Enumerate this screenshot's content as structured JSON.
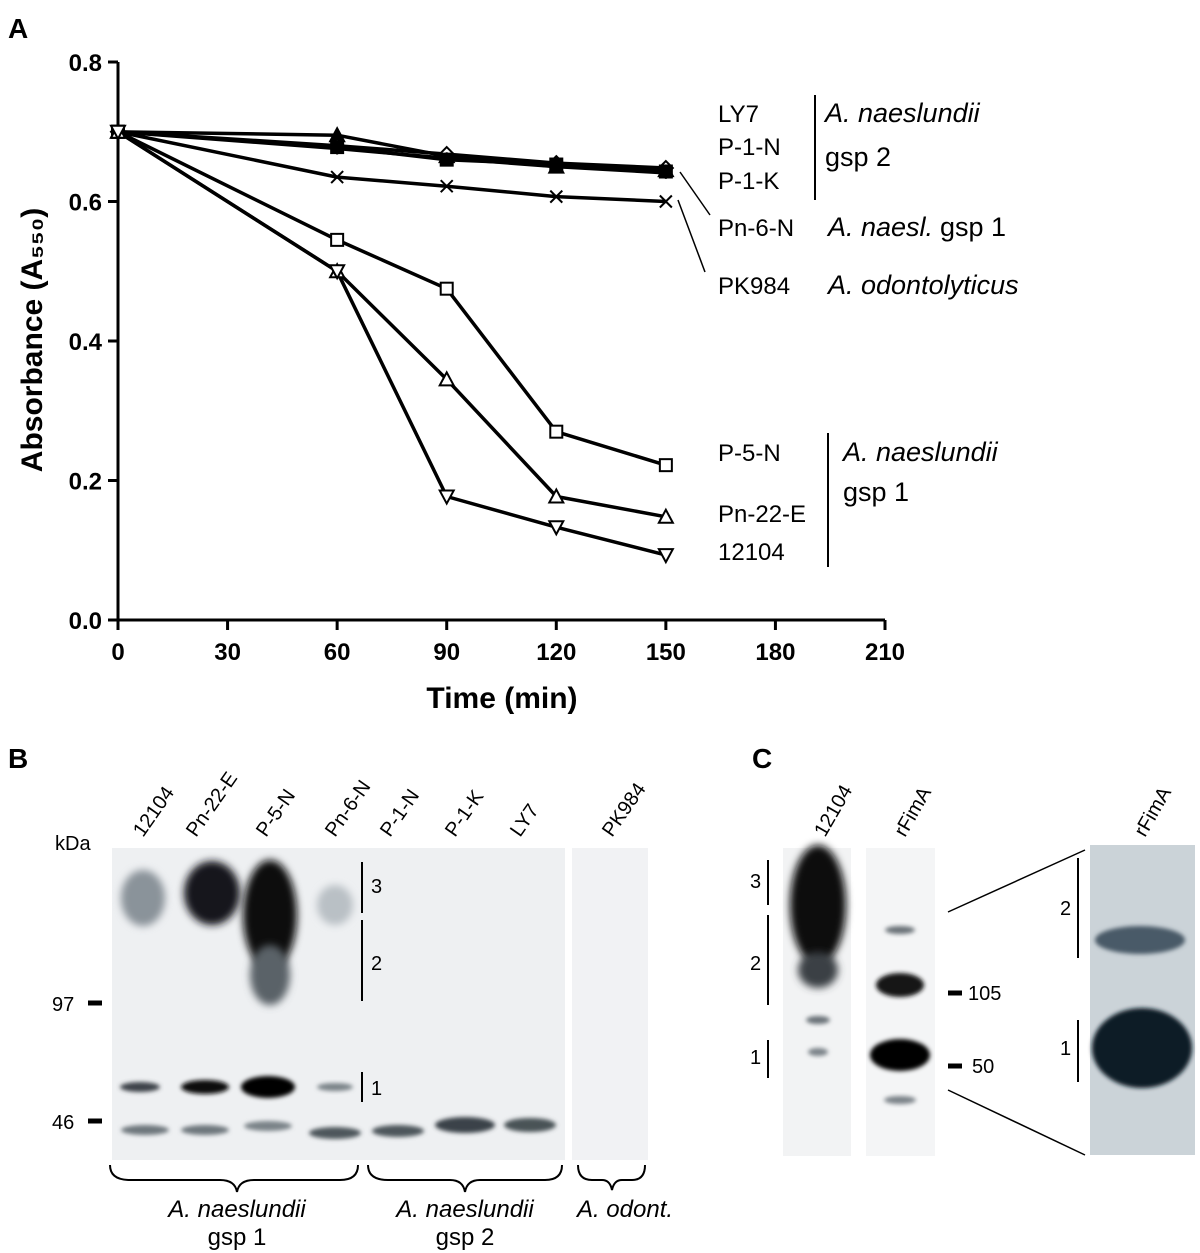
{
  "chart_data": {
    "type": "line",
    "panel_label": "A",
    "xlabel": "Time (min)",
    "ylabel": "Absorbance (A₅₅₀)",
    "x": [
      0,
      60,
      90,
      120,
      150
    ],
    "xlim": [
      0,
      210
    ],
    "xticks": [
      0,
      30,
      60,
      90,
      120,
      150,
      180,
      210
    ],
    "ylim": [
      0,
      0.8
    ],
    "yticks": [
      {
        "value": 0,
        "label": "0.0"
      },
      0.2,
      0.4,
      0.6,
      0.8
    ],
    "series": [
      {
        "name": "LY7",
        "color": "#000000",
        "marker": "triangle-filled",
        "values": [
          0.7,
          0.695,
          0.665,
          0.65,
          0.645
        ]
      },
      {
        "name": "P-1-N",
        "color": "#000000",
        "marker": "diamond",
        "values": [
          0.7,
          0.68,
          0.668,
          0.655,
          0.648
        ]
      },
      {
        "name": "P-1-K",
        "color": "#000000",
        "marker": "square-filled",
        "values": [
          0.7,
          0.678,
          0.66,
          0.653,
          0.643
        ]
      },
      {
        "name": "Pn-6-N",
        "color": "#000000",
        "marker": "plus",
        "values": [
          0.7,
          0.676,
          0.662,
          0.65,
          0.641
        ]
      },
      {
        "name": "PK984",
        "color": "#000000",
        "marker": "x",
        "values": [
          0.7,
          0.635,
          0.622,
          0.607,
          0.6
        ]
      },
      {
        "name": "P-5-N",
        "color": "#000000",
        "marker": "square",
        "values": [
          0.7,
          0.545,
          0.475,
          0.27,
          0.222
        ]
      },
      {
        "name": "Pn-22-E",
        "color": "#000000",
        "marker": "triangle",
        "values": [
          0.7,
          0.5,
          0.345,
          0.177,
          0.148
        ]
      },
      {
        "name": "12104",
        "color": "#000000",
        "marker": "triangle-down",
        "values": [
          0.7,
          0.5,
          0.177,
          0.133,
          0.093
        ]
      }
    ],
    "annotations": [
      "A. naeslundii",
      "gsp 2",
      "A. naesl.",
      "gsp 1",
      "A. odontolyticus",
      "A. naeslundii",
      "gsp 1"
    ]
  },
  "blot_b": {
    "panel_label": "B",
    "unit": "kDa",
    "lanes": [
      "12104",
      "Pn-22-E",
      "P-5-N",
      "Pn-6-N",
      "P-1-N",
      "P-1-K",
      "LY7",
      "PK984"
    ],
    "markers": [
      97,
      46
    ],
    "band_groups": [
      "3",
      "2",
      "1"
    ],
    "groups": [
      {
        "species": "A. naeslundii",
        "label": "gsp 1"
      },
      {
        "species": "A. naeslundii",
        "label": "gsp 2"
      },
      {
        "species": "A. odont."
      }
    ]
  },
  "blot_c": {
    "panel_label": "C",
    "lanes": [
      "12104",
      "rFimA"
    ],
    "band_groups": [
      "3",
      "2",
      "1"
    ],
    "markers": [
      105,
      50
    ],
    "inset_lane": "rFimA",
    "inset_band_groups": [
      "2",
      "1"
    ]
  }
}
